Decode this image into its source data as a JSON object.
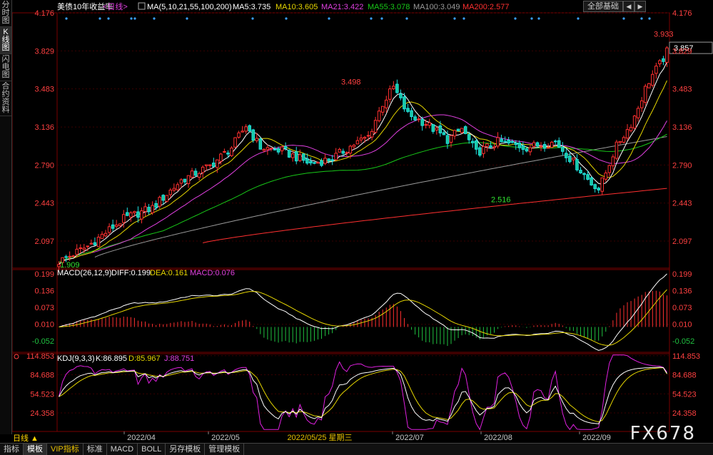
{
  "window": {
    "title": "美债10年收益率",
    "period": "<日线>",
    "all_button": "全部基础",
    "arrow_left": "◀",
    "arrow_right": "▶"
  },
  "sidebar": {
    "tabs": [
      {
        "label": "分时图",
        "active": false
      },
      {
        "label": "K线图",
        "active": true
      },
      {
        "label": "闪电图",
        "active": false
      },
      {
        "label": "合约资料",
        "active": false
      }
    ]
  },
  "main_legend": {
    "ma_params": "MA(5,10,21,55,100,200)",
    "items": [
      {
        "label": "MA5:3.735",
        "color": "#ffffff"
      },
      {
        "label": "MA10:3.605",
        "color": "#e6d600"
      },
      {
        "label": "MA21:3.422",
        "color": "#e040e0"
      },
      {
        "label": "MA55:3.078",
        "color": "#18c818"
      },
      {
        "label": "MA100:3.049",
        "color": "#9a9a9a"
      },
      {
        "label": "MA200:2.577",
        "color": "#ff3030"
      }
    ]
  },
  "macd_legend": {
    "params": "MACD(26,12,9)",
    "diff": "DIFF:0.199",
    "dea": "DEA:0.161",
    "macd": "MACD:0.076"
  },
  "kdj_legend": {
    "params": "KDJ(9,3,3)",
    "k": "K:86.895",
    "d": "D:85.967",
    "j": "J:88.751"
  },
  "annotations": {
    "high_label": "3.933",
    "mid_high_label": "3.498",
    "low_label": "2.516",
    "start_low_label": "1.909",
    "current_value": "3.857",
    "cursor_date": "2022/05/25 星期三"
  },
  "bottom_bar": {
    "period_label": "日线 ▲",
    "tabs": [
      "指标",
      "模板",
      "VIP指标",
      "标准",
      "MACD",
      "BOLL",
      "另存模板",
      "管理模板"
    ],
    "active_tab": "模板"
  },
  "watermark": "FX678",
  "chart_data": [
    {
      "type": "candlestick",
      "title": "美债10年收益率",
      "x_labels": [
        "2022/04",
        "2022/05",
        "2022/07",
        "2022/08",
        "2022/09"
      ],
      "y_ticks": [
        4.176,
        3.829,
        3.483,
        3.136,
        2.79,
        2.443,
        2.097
      ],
      "ylim": [
        1.85,
        4.176
      ],
      "key_points": [
        {
          "label": "start",
          "value": 1.909
        },
        {
          "label": "peak_may",
          "value": 3.498
        },
        {
          "label": "trough_aug",
          "value": 2.516
        },
        {
          "label": "high_sep",
          "value": 3.933
        },
        {
          "label": "last",
          "value": 3.857
        }
      ],
      "moving_averages": {
        "MA5": 3.735,
        "MA10": 3.605,
        "MA21": 3.422,
        "MA55": 3.078,
        "MA100": 3.049,
        "MA200": 2.577
      },
      "colors": {
        "up": "#ff3030",
        "down": "#20e0e0",
        "downfill": "#18c8a0"
      }
    },
    {
      "type": "macd",
      "title": "MACD(26,12,9)",
      "y_ticks": [
        0.199,
        0.136,
        0.073,
        0.01,
        -0.052
      ],
      "ylim": [
        -0.095,
        0.215
      ],
      "last": {
        "DIFF": 0.199,
        "DEA": 0.161,
        "MACD": 0.076
      }
    },
    {
      "type": "kdj",
      "title": "KDJ(9,3,3)",
      "y_ticks": [
        114.853,
        84.688,
        54.523,
        24.358
      ],
      "ylim": [
        -5,
        118
      ],
      "last": {
        "K": 86.895,
        "D": 85.967,
        "J": 88.751
      }
    }
  ]
}
